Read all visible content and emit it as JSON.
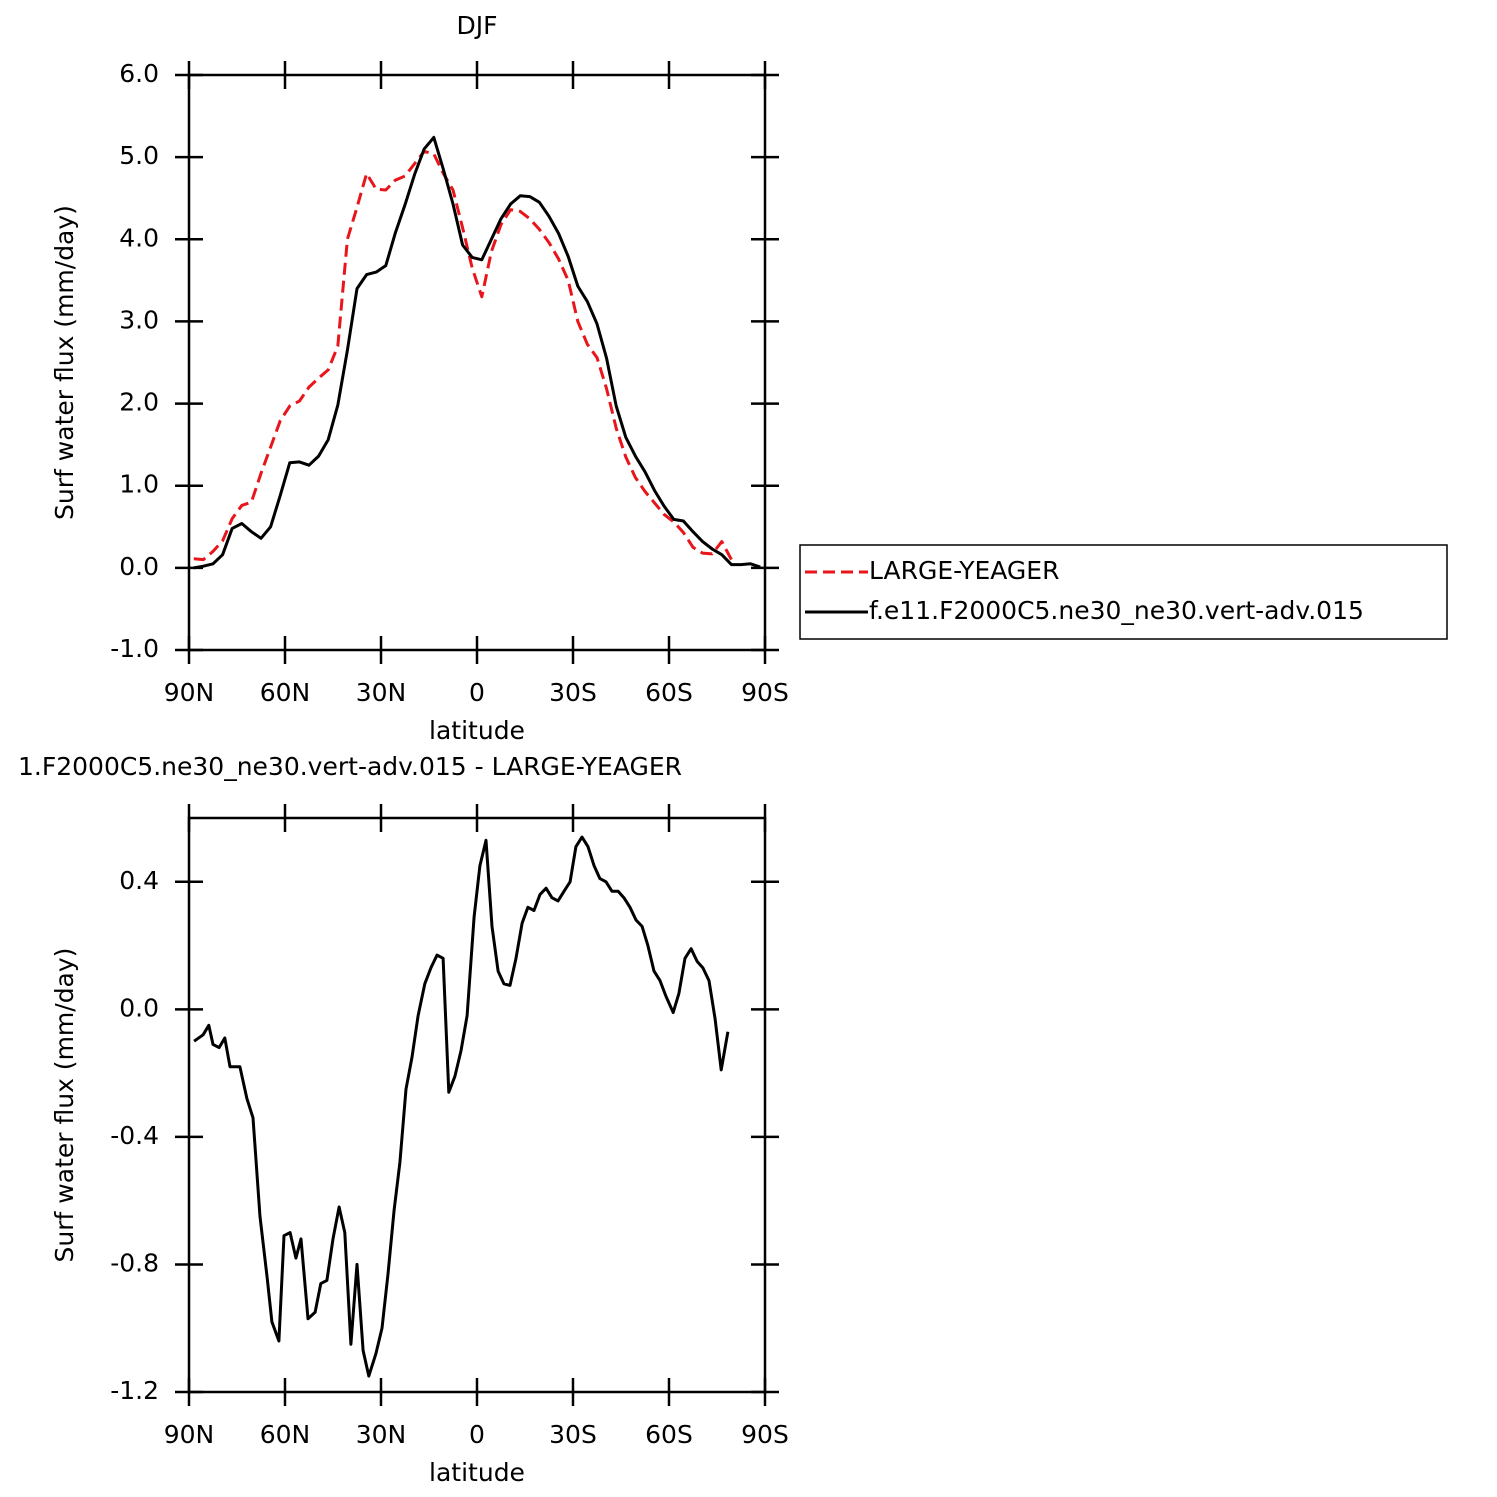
{
  "chart_data": [
    {
      "type": "line",
      "title": "DJF",
      "xlabel": "latitude",
      "ylabel": "Surf water flux (mm/day)",
      "x": [
        88.5,
        85.5,
        82.5,
        79.5,
        76.5,
        73.5,
        70.5,
        67.5,
        64.5,
        61.5,
        58.5,
        55.5,
        52.5,
        49.5,
        46.5,
        43.5,
        40.5,
        37.5,
        34.5,
        31.5,
        28.5,
        25.5,
        22.5,
        19.5,
        16.5,
        13.5,
        10.5,
        7.5,
        4.5,
        1.5,
        -1.5,
        -4.5,
        -7.5,
        -10.5,
        -13.5,
        -16.5,
        -19.5,
        -22.5,
        -25.5,
        -28.5,
        -31.5,
        -34.5,
        -37.5,
        -40.5,
        -43.5,
        -46.5,
        -49.5,
        -52.5,
        -55.5,
        -58.5,
        -61.5,
        -64.5,
        -67.5,
        -70.5,
        -73.5,
        -76.5,
        -79.5,
        -82.5,
        -85.5,
        -88.5
      ],
      "series": [
        {
          "name": "LARGE-YEAGER",
          "color": "#e8151b",
          "linestyle": "dashed",
          "values": [
            0.11,
            0.1,
            0.2,
            0.33,
            0.6,
            0.76,
            0.8,
            1.15,
            1.47,
            1.79,
            1.97,
            2.03,
            2.2,
            2.31,
            2.41,
            2.7,
            4.0,
            4.39,
            4.8,
            4.61,
            4.6,
            4.72,
            4.77,
            4.92,
            5.07,
            5.04,
            4.8,
            4.6,
            4.14,
            3.65,
            3.3,
            3.85,
            4.18,
            4.36,
            4.34,
            4.25,
            4.12,
            3.96,
            3.76,
            3.5,
            3.0,
            2.72,
            2.56,
            2.18,
            1.7,
            1.35,
            1.1,
            0.93,
            0.79,
            0.65,
            0.56,
            0.43,
            0.25,
            0.18,
            0.17,
            0.32,
            0.1,
            null,
            null,
            null
          ]
        },
        {
          "name": "f.e11.F2000C5.ne30_ne30.vert-adv.015",
          "color": "#000000",
          "linestyle": "solid",
          "values": [
            0.0,
            0.02,
            0.05,
            0.16,
            0.48,
            0.54,
            0.44,
            0.36,
            0.5,
            0.88,
            1.28,
            1.29,
            1.25,
            1.36,
            1.56,
            1.98,
            2.65,
            3.4,
            3.57,
            3.6,
            3.68,
            4.08,
            4.42,
            4.79,
            5.1,
            5.24,
            4.85,
            4.43,
            3.93,
            3.78,
            3.75,
            4.0,
            4.25,
            4.43,
            4.53,
            4.52,
            4.45,
            4.28,
            4.07,
            3.79,
            3.43,
            3.24,
            2.97,
            2.55,
            1.97,
            1.59,
            1.36,
            1.17,
            0.94,
            0.75,
            0.59,
            0.57,
            0.44,
            0.32,
            0.23,
            0.16,
            0.04,
            0.04,
            0.05,
            0.01
          ]
        }
      ],
      "xlim": [
        90,
        -90
      ],
      "xticks": [
        {
          "value": 90,
          "label": "90N"
        },
        {
          "value": 60,
          "label": "60N"
        },
        {
          "value": 30,
          "label": "30N"
        },
        0,
        {
          "value": -30,
          "label": "30S"
        },
        {
          "value": -60,
          "label": "60S"
        },
        {
          "value": -90,
          "label": "90S"
        }
      ],
      "ylim": [
        -1.0,
        6.0
      ],
      "yticks": [
        {
          "value": -1.0,
          "label": "-1.0"
        },
        {
          "value": 0,
          "label": "0.0"
        },
        {
          "value": 1.0,
          "label": "1.0"
        },
        {
          "value": 2.0,
          "label": "2.0"
        },
        {
          "value": 3.0,
          "label": "3.0"
        },
        {
          "value": 4.0,
          "label": "4.0"
        },
        {
          "value": 5.0,
          "label": "5.0"
        },
        {
          "value": 6.0,
          "label": "6.0"
        }
      ],
      "legend": "right"
    },
    {
      "type": "line",
      "title": "1.F2000C5.ne30_ne30.vert-adv.015 - LARGE-YEAGER",
      "xlabel": "latitude",
      "ylabel": "Surf water flux (mm/day)",
      "x": [
        88.4,
        85.6,
        83.8,
        82.5,
        80.6,
        78.8,
        77.2,
        74.1,
        71.9,
        70.0,
        67.8,
        65.6,
        64.1,
        61.9,
        60.3,
        58.4,
        56.6,
        55.0,
        52.8,
        50.6,
        48.8,
        46.9,
        45.0,
        43.1,
        41.3,
        39.4,
        37.5,
        35.6,
        33.8,
        31.6,
        29.7,
        27.8,
        25.9,
        24.1,
        22.2,
        20.3,
        18.4,
        16.3,
        14.4,
        12.5,
        10.6,
        8.8,
        6.9,
        5.0,
        3.1,
        0.9,
        -0.9,
        -2.8,
        -4.7,
        -6.6,
        -8.4,
        -10.3,
        -12.2,
        -14.1,
        -15.9,
        -17.8,
        -19.7,
        -21.6,
        -23.4,
        -25.3,
        -27.2,
        -29.1,
        -30.9,
        -32.8,
        -34.7,
        -36.6,
        -38.4,
        -40.3,
        -42.2,
        -44.1,
        -45.9,
        -47.8,
        -49.7,
        -51.6,
        -53.4,
        -55.3,
        -57.2,
        -59.1,
        -61.3,
        -63.1,
        -65.0,
        -66.9,
        -68.8,
        -70.6,
        -72.5,
        -74.4,
        -76.3,
        -78.4
      ],
      "values": [
        -0.1,
        -0.08,
        -0.05,
        -0.11,
        -0.12,
        -0.09,
        -0.18,
        -0.18,
        -0.28,
        -0.34,
        -0.65,
        -0.84,
        -0.98,
        -1.04,
        -0.71,
        -0.7,
        -0.78,
        -0.72,
        -0.97,
        -0.95,
        -0.86,
        -0.85,
        -0.72,
        -0.62,
        -0.7,
        -1.05,
        -0.8,
        -1.07,
        -1.15,
        -1.08,
        -1.0,
        -0.83,
        -0.63,
        -0.48,
        -0.25,
        -0.15,
        -0.02,
        0.08,
        0.13,
        0.17,
        0.16,
        -0.26,
        -0.21,
        -0.13,
        -0.02,
        0.29,
        0.45,
        0.53,
        0.26,
        0.12,
        0.08,
        0.075,
        0.16,
        0.27,
        0.32,
        0.31,
        0.36,
        0.38,
        0.35,
        0.34,
        0.37,
        0.4,
        0.51,
        0.54,
        0.51,
        0.45,
        0.41,
        0.4,
        0.37,
        0.37,
        0.35,
        0.32,
        0.28,
        0.26,
        0.2,
        0.12,
        0.09,
        0.04,
        -0.01,
        0.05,
        0.16,
        0.19,
        0.15,
        0.13,
        0.09,
        -0.03,
        -0.19,
        -0.07
      ],
      "color": "#000000",
      "xlim": [
        90,
        -90
      ],
      "xticks": [
        {
          "value": 90,
          "label": "90N"
        },
        {
          "value": 60,
          "label": "60N"
        },
        {
          "value": 30,
          "label": "30N"
        },
        0,
        {
          "value": -30,
          "label": "30S"
        },
        {
          "value": -60,
          "label": "60S"
        },
        {
          "value": -90,
          "label": "90S"
        }
      ],
      "ylim": [
        -1.2,
        0.6
      ],
      "yticks": [
        -1.2,
        -0.8,
        -0.4,
        {
          "value": 0,
          "label": "0.0"
        },
        0.4
      ]
    }
  ]
}
